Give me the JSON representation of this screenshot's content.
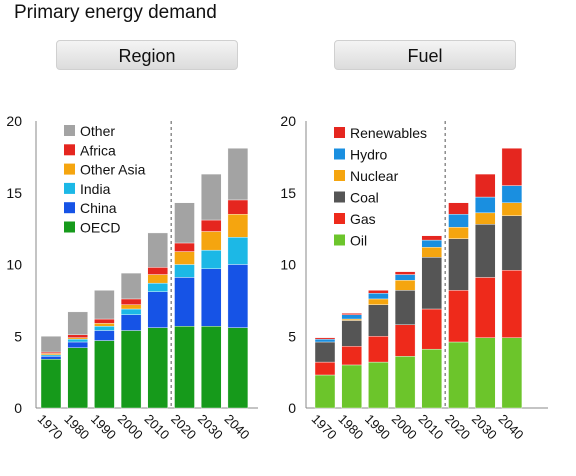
{
  "title": "Primary energy demand",
  "chart_data": [
    {
      "type": "bar",
      "stacked": true,
      "title": "Region",
      "categories": [
        "1970",
        "1980",
        "1990",
        "2000",
        "2010",
        "2020",
        "2030",
        "2040"
      ],
      "ylim": [
        0,
        20
      ],
      "yticks": [
        0,
        5,
        10,
        15,
        20
      ],
      "legend_position": "top-left",
      "divider_after": "2010",
      "series": [
        {
          "name": "OECD",
          "color": "#169a1b",
          "values": [
            3.4,
            4.2,
            4.7,
            5.4,
            5.6,
            5.7,
            5.7,
            5.6
          ]
        },
        {
          "name": "China",
          "color": "#1653e6",
          "values": [
            0.2,
            0.4,
            0.7,
            1.1,
            2.5,
            3.4,
            4.0,
            4.4
          ]
        },
        {
          "name": "India",
          "color": "#1cb8e6",
          "values": [
            0.1,
            0.2,
            0.3,
            0.4,
            0.6,
            0.9,
            1.3,
            1.9
          ]
        },
        {
          "name": "Other Asia",
          "color": "#f5a50f",
          "values": [
            0.1,
            0.1,
            0.2,
            0.3,
            0.6,
            0.9,
            1.3,
            1.6
          ]
        },
        {
          "name": "Africa",
          "color": "#e5261f",
          "values": [
            0.1,
            0.2,
            0.3,
            0.4,
            0.5,
            0.6,
            0.8,
            1.0
          ]
        },
        {
          "name": "Other",
          "color": "#a3a3a3",
          "values": [
            1.1,
            1.6,
            2.0,
            1.8,
            2.4,
            2.8,
            3.2,
            3.6
          ]
        }
      ]
    },
    {
      "type": "bar",
      "stacked": true,
      "title": "Fuel",
      "categories": [
        "1970",
        "1980",
        "1990",
        "2000",
        "2010",
        "2020",
        "2030",
        "2040"
      ],
      "ylim": [
        0,
        20
      ],
      "yticks": [
        0,
        5,
        10,
        15,
        20
      ],
      "legend_position": "top-left",
      "divider_after": "2010",
      "series": [
        {
          "name": "Oil",
          "color": "#6cc52b",
          "values": [
            2.3,
            3.0,
            3.2,
            3.6,
            4.1,
            4.6,
            4.9,
            4.9
          ]
        },
        {
          "name": "Gas",
          "color": "#ee2a1b",
          "values": [
            0.9,
            1.3,
            1.8,
            2.2,
            2.8,
            3.6,
            4.2,
            4.7
          ]
        },
        {
          "name": "Coal",
          "color": "#555555",
          "values": [
            1.4,
            1.8,
            2.2,
            2.4,
            3.6,
            3.6,
            3.7,
            3.8
          ]
        },
        {
          "name": "Nuclear",
          "color": "#f5a50f",
          "values": [
            0.0,
            0.1,
            0.4,
            0.7,
            0.7,
            0.8,
            0.8,
            0.9
          ]
        },
        {
          "name": "Hydro",
          "color": "#1a8fe0",
          "values": [
            0.2,
            0.3,
            0.4,
            0.4,
            0.5,
            0.9,
            1.1,
            1.2
          ]
        },
        {
          "name": "Renewables",
          "color": "#e5261f",
          "values": [
            0.1,
            0.1,
            0.2,
            0.2,
            0.3,
            0.8,
            1.6,
            2.6
          ]
        }
      ]
    }
  ]
}
